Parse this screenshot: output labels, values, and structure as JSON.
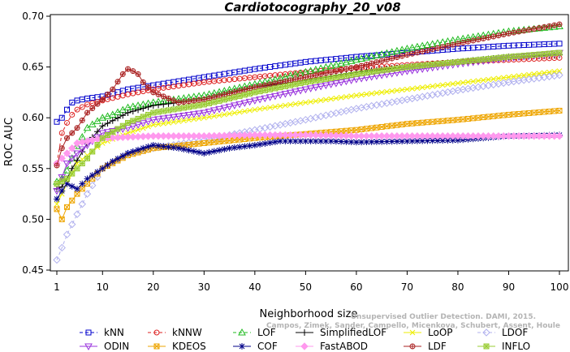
{
  "chart_data": {
    "type": "line",
    "title": "Cardiotocography_20_v08",
    "xlabel": "Neighborhood size",
    "ylabel": "ROC AUC",
    "xlim": [
      1,
      100
    ],
    "ylim": [
      0.45,
      0.7
    ],
    "x_ticks": [
      "1",
      "10",
      "20",
      "30",
      "40",
      "50",
      "60",
      "70",
      "80",
      "90",
      "100"
    ],
    "y_ticks": [
      "0.45",
      "0.50",
      "0.55",
      "0.60",
      "0.65",
      "0.70"
    ],
    "grid": false,
    "legend_position": "bottom",
    "credit_lines": [
      "Unsupervised Outlier Detection. DAMI, 2015.",
      "Campos, Zimek, Sander, Campello, Micenkova, Schubert, Assent, Houle"
    ],
    "series": [
      {
        "name": "kNN",
        "color": "#0000cc",
        "marker": "square",
        "dash": "4,3",
        "points": [
          [
            1,
            0.596
          ],
          [
            2,
            0.6
          ],
          [
            3,
            0.608
          ],
          [
            4,
            0.615
          ],
          [
            5,
            0.617
          ],
          [
            7,
            0.619
          ],
          [
            10,
            0.621
          ],
          [
            15,
            0.628
          ],
          [
            20,
            0.632
          ],
          [
            30,
            0.64
          ],
          [
            40,
            0.648
          ],
          [
            50,
            0.655
          ],
          [
            60,
            0.66
          ],
          [
            70,
            0.664
          ],
          [
            80,
            0.668
          ],
          [
            90,
            0.671
          ],
          [
            100,
            0.673
          ]
        ]
      },
      {
        "name": "kNNW",
        "color": "#dd2222",
        "marker": "circle",
        "dash": "4,3",
        "points": [
          [
            1,
            0.555
          ],
          [
            2,
            0.585
          ],
          [
            3,
            0.595
          ],
          [
            4,
            0.603
          ],
          [
            5,
            0.608
          ],
          [
            7,
            0.613
          ],
          [
            10,
            0.617
          ],
          [
            15,
            0.623
          ],
          [
            20,
            0.628
          ],
          [
            30,
            0.635
          ],
          [
            40,
            0.64
          ],
          [
            50,
            0.645
          ],
          [
            60,
            0.649
          ],
          [
            70,
            0.652
          ],
          [
            80,
            0.655
          ],
          [
            90,
            0.657
          ],
          [
            100,
            0.659
          ]
        ]
      },
      {
        "name": "LOF",
        "color": "#22bb22",
        "marker": "triangle",
        "dash": "4,3",
        "points": [
          [
            1,
            0.537
          ],
          [
            2,
            0.54
          ],
          [
            3,
            0.548
          ],
          [
            4,
            0.56
          ],
          [
            5,
            0.572
          ],
          [
            7,
            0.59
          ],
          [
            10,
            0.6
          ],
          [
            12,
            0.603
          ],
          [
            15,
            0.61
          ],
          [
            20,
            0.615
          ],
          [
            30,
            0.622
          ],
          [
            40,
            0.633
          ],
          [
            50,
            0.645
          ],
          [
            60,
            0.657
          ],
          [
            70,
            0.668
          ],
          [
            80,
            0.677
          ],
          [
            90,
            0.685
          ],
          [
            100,
            0.69
          ]
        ]
      },
      {
        "name": "SimplifiedLOF",
        "color": "#000000",
        "marker": "plus",
        "dash": "",
        "points": [
          [
            1,
            0.53
          ],
          [
            2,
            0.532
          ],
          [
            3,
            0.54
          ],
          [
            4,
            0.55
          ],
          [
            5,
            0.558
          ],
          [
            7,
            0.575
          ],
          [
            10,
            0.592
          ],
          [
            15,
            0.605
          ],
          [
            20,
            0.612
          ],
          [
            30,
            0.618
          ],
          [
            40,
            0.63
          ],
          [
            50,
            0.637
          ],
          [
            60,
            0.645
          ],
          [
            70,
            0.65
          ],
          [
            80,
            0.655
          ],
          [
            90,
            0.66
          ],
          [
            100,
            0.662
          ]
        ]
      },
      {
        "name": "LoOP",
        "color": "#eeee00",
        "marker": "x",
        "dash": "",
        "points": [
          [
            1,
            0.515
          ],
          [
            3,
            0.535
          ],
          [
            5,
            0.555
          ],
          [
            10,
            0.575
          ],
          [
            15,
            0.585
          ],
          [
            20,
            0.593
          ],
          [
            30,
            0.6
          ],
          [
            40,
            0.608
          ],
          [
            50,
            0.615
          ],
          [
            60,
            0.622
          ],
          [
            70,
            0.628
          ],
          [
            80,
            0.634
          ],
          [
            90,
            0.64
          ],
          [
            100,
            0.646
          ]
        ]
      },
      {
        "name": "LDOF",
        "color": "#b0b0ee",
        "marker": "diamond",
        "dash": "4,3",
        "points": [
          [
            1,
            0.46
          ],
          [
            2,
            0.472
          ],
          [
            3,
            0.485
          ],
          [
            5,
            0.505
          ],
          [
            7,
            0.525
          ],
          [
            10,
            0.55
          ],
          [
            15,
            0.565
          ],
          [
            20,
            0.57
          ],
          [
            30,
            0.578
          ],
          [
            40,
            0.588
          ],
          [
            50,
            0.598
          ],
          [
            60,
            0.609
          ],
          [
            70,
            0.618
          ],
          [
            80,
            0.627
          ],
          [
            90,
            0.635
          ],
          [
            100,
            0.642
          ]
        ]
      },
      {
        "name": "ODIN",
        "color": "#9933dd",
        "marker": "triangle-down",
        "dash": "",
        "points": [
          [
            1,
            0.528
          ],
          [
            3,
            0.555
          ],
          [
            5,
            0.565
          ],
          [
            10,
            0.585
          ],
          [
            15,
            0.59
          ],
          [
            20,
            0.598
          ],
          [
            30,
            0.605
          ],
          [
            40,
            0.617
          ],
          [
            50,
            0.628
          ],
          [
            60,
            0.638
          ],
          [
            70,
            0.646
          ],
          [
            80,
            0.653
          ],
          [
            90,
            0.659
          ],
          [
            100,
            0.664
          ]
        ]
      },
      {
        "name": "KDEOS",
        "color": "#eea500",
        "marker": "boxed-x",
        "dash": "",
        "points": [
          [
            1,
            0.51
          ],
          [
            2,
            0.5
          ],
          [
            3,
            0.512
          ],
          [
            5,
            0.525
          ],
          [
            7,
            0.535
          ],
          [
            10,
            0.55
          ],
          [
            15,
            0.563
          ],
          [
            20,
            0.57
          ],
          [
            30,
            0.575
          ],
          [
            40,
            0.58
          ],
          [
            50,
            0.584
          ],
          [
            60,
            0.588
          ],
          [
            70,
            0.594
          ],
          [
            80,
            0.598
          ],
          [
            90,
            0.603
          ],
          [
            100,
            0.607
          ]
        ]
      },
      {
        "name": "COF",
        "color": "#000088",
        "marker": "asterisk",
        "dash": "",
        "points": [
          [
            1,
            0.52
          ],
          [
            2,
            0.528
          ],
          [
            3,
            0.535
          ],
          [
            5,
            0.53
          ],
          [
            7,
            0.54
          ],
          [
            10,
            0.55
          ],
          [
            12,
            0.557
          ],
          [
            15,
            0.565
          ],
          [
            18,
            0.57
          ],
          [
            20,
            0.573
          ],
          [
            25,
            0.57
          ],
          [
            30,
            0.565
          ],
          [
            35,
            0.57
          ],
          [
            40,
            0.573
          ],
          [
            45,
            0.577
          ],
          [
            50,
            0.577
          ],
          [
            55,
            0.577
          ],
          [
            60,
            0.576
          ],
          [
            70,
            0.577
          ],
          [
            80,
            0.578
          ],
          [
            90,
            0.582
          ],
          [
            100,
            0.583
          ]
        ]
      },
      {
        "name": "FastABOD",
        "color": "#ff99ee",
        "marker": "diamond-filled",
        "dash": "",
        "points": [
          [
            1,
            0.555
          ],
          [
            3,
            0.565
          ],
          [
            5,
            0.575
          ],
          [
            10,
            0.58
          ],
          [
            15,
            0.581
          ],
          [
            20,
            0.582
          ],
          [
            30,
            0.582
          ],
          [
            40,
            0.583
          ],
          [
            50,
            0.583
          ],
          [
            60,
            0.582
          ],
          [
            70,
            0.582
          ],
          [
            80,
            0.582
          ],
          [
            90,
            0.582
          ],
          [
            100,
            0.582
          ]
        ]
      },
      {
        "name": "LDF",
        "color": "#aa2222",
        "marker": "circle-plus",
        "dash": "",
        "points": [
          [
            1,
            0.553
          ],
          [
            2,
            0.57
          ],
          [
            3,
            0.58
          ],
          [
            5,
            0.59
          ],
          [
            7,
            0.605
          ],
          [
            10,
            0.618
          ],
          [
            12,
            0.628
          ],
          [
            14,
            0.643
          ],
          [
            15,
            0.648
          ],
          [
            16,
            0.646
          ],
          [
            17,
            0.643
          ],
          [
            18,
            0.635
          ],
          [
            20,
            0.625
          ],
          [
            25,
            0.615
          ],
          [
            30,
            0.618
          ],
          [
            40,
            0.63
          ],
          [
            50,
            0.64
          ],
          [
            60,
            0.65
          ],
          [
            70,
            0.662
          ],
          [
            80,
            0.673
          ],
          [
            90,
            0.683
          ],
          [
            100,
            0.692
          ]
        ]
      },
      {
        "name": "INFLO",
        "color": "#99cc33",
        "marker": "boxed-star",
        "dash": "",
        "points": [
          [
            1,
            0.535
          ],
          [
            3,
            0.54
          ],
          [
            5,
            0.55
          ],
          [
            7,
            0.56
          ],
          [
            10,
            0.58
          ],
          [
            15,
            0.595
          ],
          [
            20,
            0.605
          ],
          [
            30,
            0.613
          ],
          [
            40,
            0.625
          ],
          [
            50,
            0.635
          ],
          [
            60,
            0.643
          ],
          [
            70,
            0.65
          ],
          [
            80,
            0.655
          ],
          [
            90,
            0.66
          ],
          [
            100,
            0.664
          ]
        ]
      }
    ]
  }
}
